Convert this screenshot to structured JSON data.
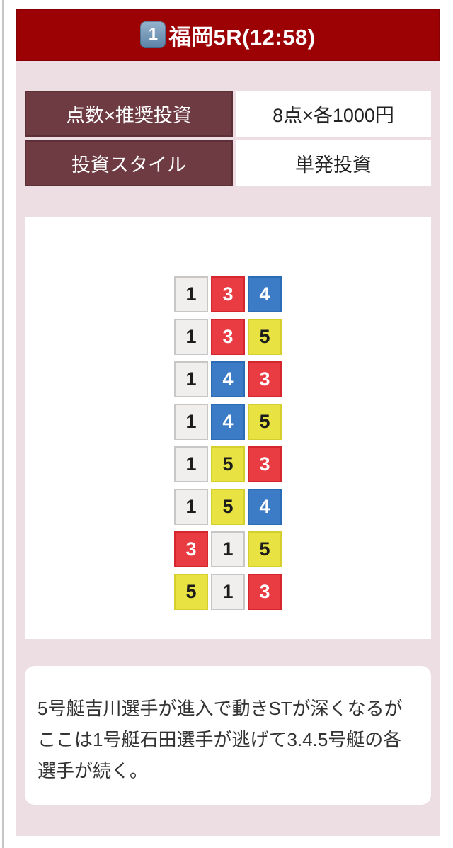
{
  "header": {
    "keycap": "1",
    "title": "福岡5R(12:58)"
  },
  "info_table": {
    "rows": [
      {
        "label": "点数×推奨投資",
        "value": "8点×各1000円"
      },
      {
        "label": "投資スタイル",
        "value": "単発投資"
      }
    ]
  },
  "predictions": {
    "combinations": [
      [
        "1",
        "3",
        "4"
      ],
      [
        "1",
        "3",
        "5"
      ],
      [
        "1",
        "4",
        "3"
      ],
      [
        "1",
        "4",
        "5"
      ],
      [
        "1",
        "5",
        "3"
      ],
      [
        "1",
        "5",
        "4"
      ],
      [
        "3",
        "1",
        "5"
      ],
      [
        "5",
        "1",
        "3"
      ]
    ]
  },
  "comment": "5号艇吉川選手が進入で動きSTが深くなるがここは1号艇石田選手が逃げて3.4.5号艇の各選手が続く。",
  "colors": {
    "banner_bg": "#9c0104",
    "banner_border": "#850104",
    "label_bg": "#6e3b42",
    "label_border": "#5d3037",
    "section_bg": "#ecdee2",
    "keycap_top": "#96b4cd",
    "keycap_bottom": "#5a81a5",
    "boats": {
      "1": {
        "bg": "#f0efed",
        "border": "#c9c7c5",
        "text": "#1c1c1c"
      },
      "3": {
        "bg": "#e83b42",
        "border": "#d5252d",
        "text": "#ffffff"
      },
      "4": {
        "bg": "#3c7cc6",
        "border": "#2b6cb7",
        "text": "#ffffff"
      },
      "5": {
        "bg": "#e8e243",
        "border": "#d5cf2e",
        "text": "#1c1c1c"
      }
    }
  }
}
